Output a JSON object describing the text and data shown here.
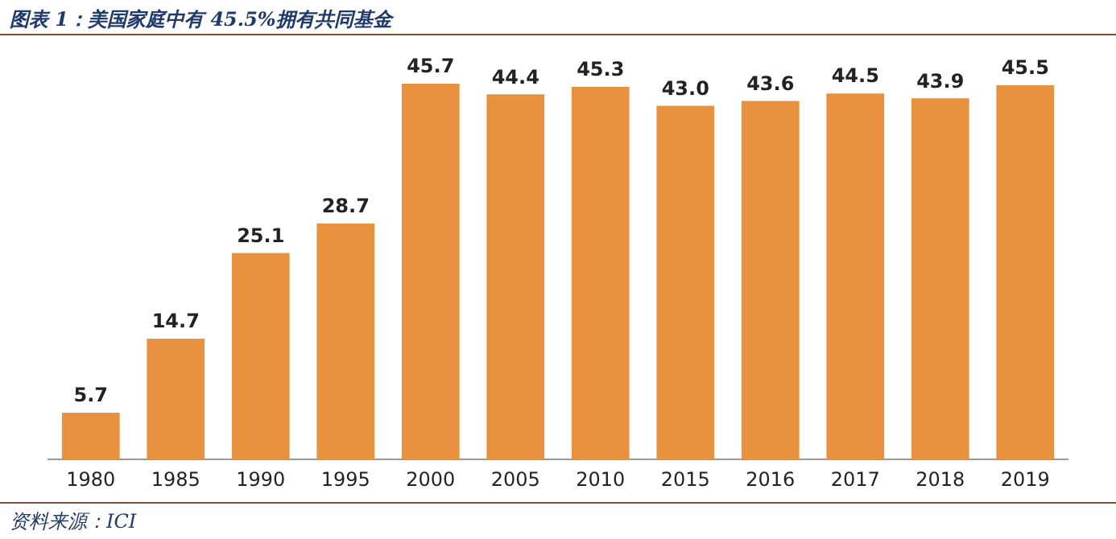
{
  "chart_data": {
    "type": "bar",
    "title": "图表 1：美国家庭中有 45.5%拥有共同基金",
    "categories": [
      "1980",
      "1985",
      "1990",
      "1995",
      "2000",
      "2005",
      "2010",
      "2015",
      "2016",
      "2017",
      "2018",
      "2019"
    ],
    "values": [
      5.7,
      14.7,
      25.1,
      28.7,
      45.7,
      44.4,
      45.3,
      43.0,
      43.6,
      44.5,
      43.9,
      45.5
    ],
    "color": "#e8913e",
    "value_labels": [
      "5.7",
      "14.7",
      "25.1",
      "28.7",
      "45.7",
      "44.4",
      "45.3",
      "43.0",
      "43.6",
      "44.5",
      "43.9",
      "45.5"
    ],
    "grid": false,
    "legend": false,
    "annotations": [
      "资料来源：ICI"
    ]
  }
}
